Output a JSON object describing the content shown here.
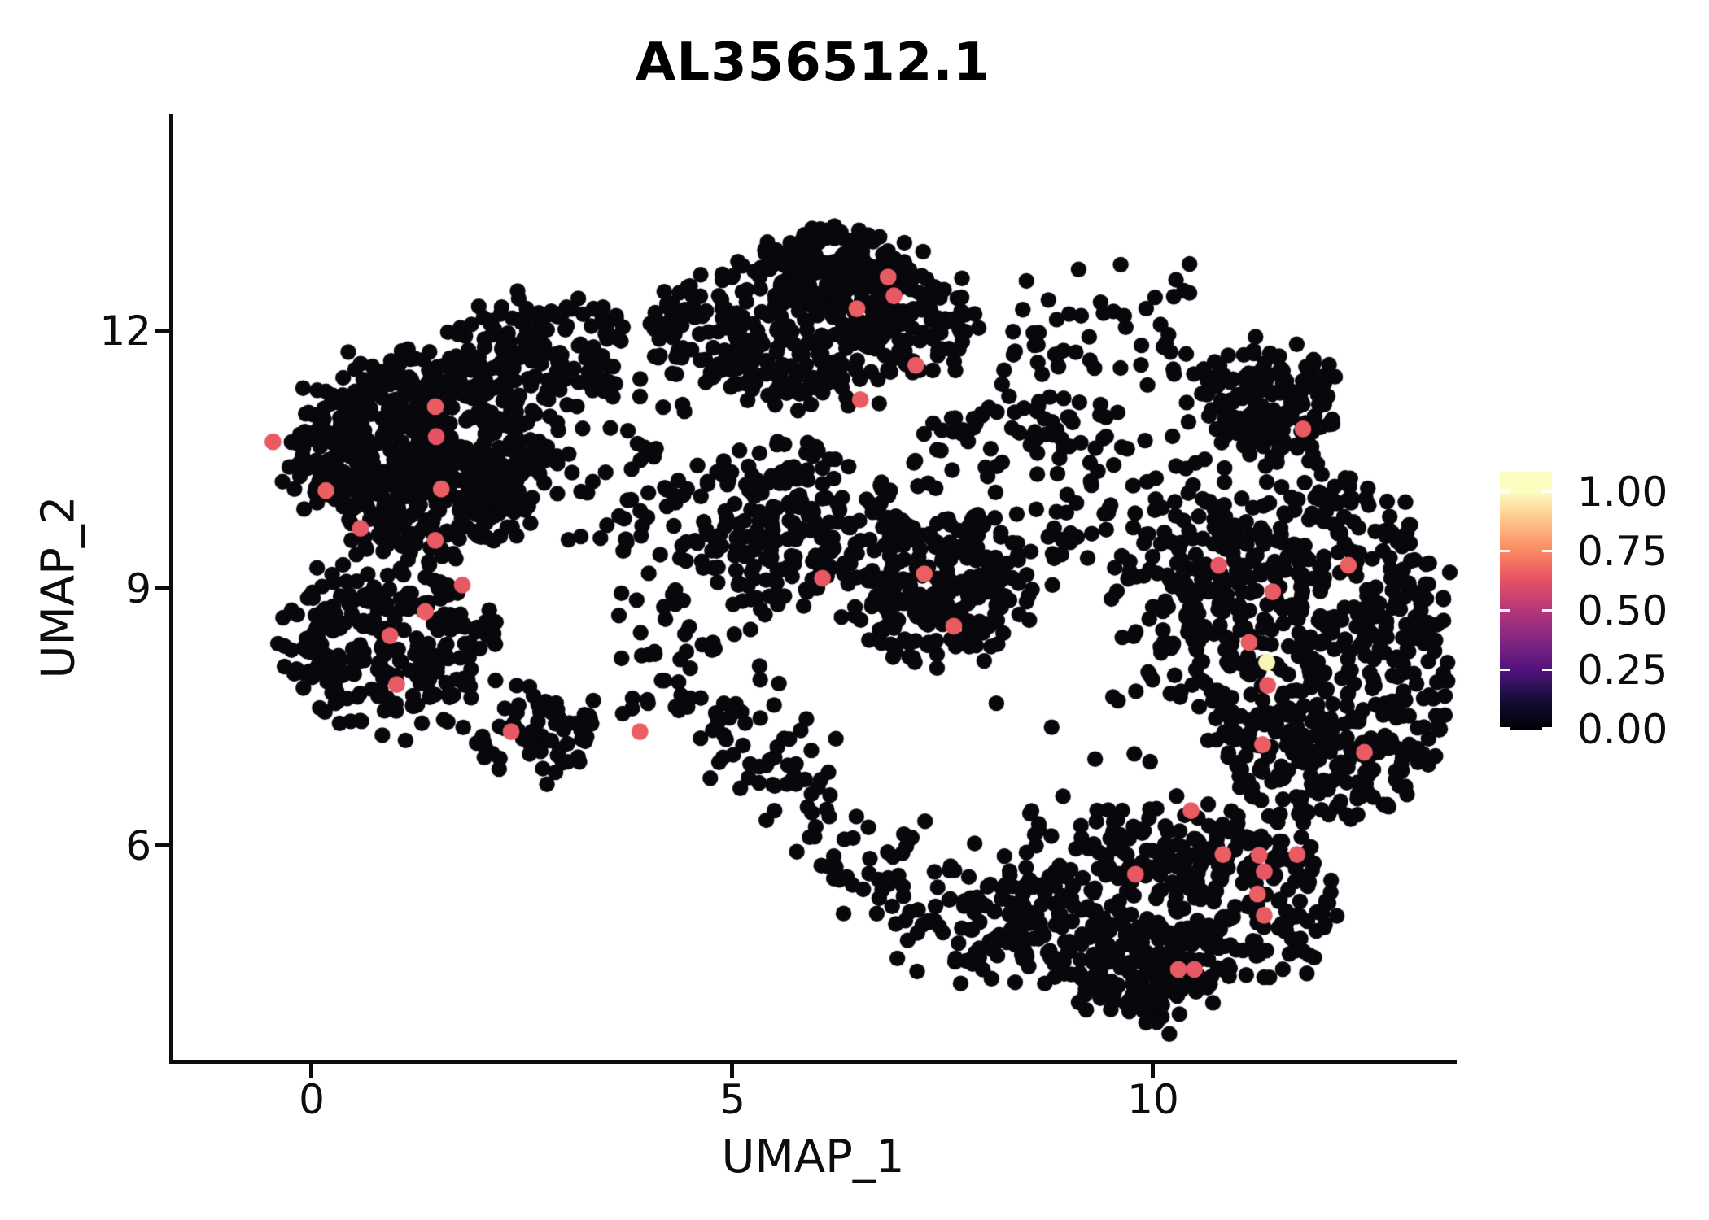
{
  "title": "AL356512.1",
  "chart_data": {
    "type": "scatter",
    "title": "AL356512.1",
    "subtitle": "",
    "xlabel": "UMAP_1",
    "ylabel": "UMAP_2",
    "xlim": [
      -1.673,
      13.588
    ],
    "ylim": [
      3.488,
      14.531
    ],
    "grid": false,
    "legend_position": "right",
    "x_ticks": [
      {
        "value": 0,
        "label": "0"
      },
      {
        "value": 5,
        "label": "5"
      },
      {
        "value": 10,
        "label": "10"
      }
    ],
    "y_ticks": [
      {
        "value": 12,
        "label": "12"
      },
      {
        "value": 9,
        "label": "9"
      },
      {
        "value": 6,
        "label": "6"
      }
    ],
    "point_style": {
      "radius_px": 9.7,
      "highlight_radius_px": 10.4,
      "base_color": "#07070c"
    },
    "colormap": {
      "name": "magma",
      "stops": [
        [
          0.0,
          "#000004"
        ],
        [
          0.125,
          "#140e36"
        ],
        [
          0.25,
          "#51127c"
        ],
        [
          0.375,
          "#822681"
        ],
        [
          0.5,
          "#b5367a"
        ],
        [
          0.625,
          "#e55064"
        ],
        [
          0.75,
          "#fb8761"
        ],
        [
          0.875,
          "#fec287"
        ],
        [
          1.0,
          "#fcfdbf"
        ]
      ]
    },
    "legend": {
      "vmax": 1.085,
      "ticks": [
        {
          "value": 1.0,
          "label": "1.00"
        },
        {
          "value": 0.75,
          "label": "0.75"
        },
        {
          "value": 0.5,
          "label": "0.50"
        },
        {
          "value": 0.25,
          "label": "0.25"
        },
        {
          "value": 0.0,
          "label": "0.00"
        }
      ]
    },
    "seed": 1337,
    "background_clusters": [
      {
        "type": "blob",
        "cx": 1.32,
        "cy": 10.55,
        "rx": 1.55,
        "ry": 1.14,
        "n": 650
      },
      {
        "type": "blob",
        "cx": 2.78,
        "cy": 11.83,
        "rx": 1.06,
        "ry": 0.52,
        "n": 130
      },
      {
        "type": "blob",
        "cx": 0.94,
        "cy": 8.37,
        "rx": 1.26,
        "ry": 0.9,
        "n": 260
      },
      {
        "type": "blob",
        "cx": 2.78,
        "cy": 7.33,
        "rx": 0.77,
        "ry": 0.43,
        "n": 70
      },
      {
        "type": "blob",
        "cx": 5.97,
        "cy": 12.02,
        "rx": 1.93,
        "ry": 0.81,
        "n": 380
      },
      {
        "type": "blob",
        "cx": 6.26,
        "cy": 12.73,
        "rx": 0.87,
        "ry": 0.43,
        "n": 140
      },
      {
        "type": "blob",
        "cx": 7.42,
        "cy": 9.03,
        "rx": 1.06,
        "ry": 0.81,
        "n": 220
      },
      {
        "type": "blob",
        "cx": 5.58,
        "cy": 9.79,
        "rx": 1.16,
        "ry": 0.85,
        "n": 200
      },
      {
        "type": "blob",
        "cx": 8.38,
        "cy": 10.17,
        "rx": 1.55,
        "ry": 1.14,
        "n": 110
      },
      {
        "type": "blob",
        "cx": 11.38,
        "cy": 11.12,
        "rx": 0.82,
        "ry": 0.62,
        "n": 170
      },
      {
        "type": "blob",
        "cx": 11.96,
        "cy": 8.27,
        "rx": 1.6,
        "ry": 1.99,
        "n": 620
      },
      {
        "type": "blob",
        "cx": 10.32,
        "cy": 9.22,
        "rx": 0.87,
        "ry": 1.33,
        "n": 120
      },
      {
        "type": "line",
        "x1": 4.81,
        "y1": 7.42,
        "x2": 8.29,
        "y2": 4.67,
        "jitter": 0.35,
        "n": 160
      },
      {
        "type": "blob",
        "cx": 10.13,
        "cy": 5.34,
        "rx": 2.22,
        "ry": 1.04,
        "n": 430
      },
      {
        "type": "blob",
        "cx": 9.93,
        "cy": 4.48,
        "rx": 0.87,
        "ry": 0.47,
        "n": 90
      },
      {
        "type": "box",
        "x0": 8.0,
        "x1": 10.3,
        "y0": 5.9,
        "y1": 7.9,
        "n": 16
      },
      {
        "type": "box",
        "x0": 8.2,
        "x1": 10.5,
        "y0": 10.6,
        "y1": 12.8,
        "n": 70
      },
      {
        "type": "box",
        "x0": 2.9,
        "x1": 4.5,
        "y0": 9.3,
        "y1": 11.6,
        "n": 55
      },
      {
        "type": "box",
        "x0": 3.6,
        "x1": 5.5,
        "y0": 7.5,
        "y1": 9.2,
        "n": 45
      }
    ],
    "highlighted_points": [
      {
        "x": -0.46,
        "y": 10.71,
        "value": 0.65
      },
      {
        "x": 0.17,
        "y": 10.14,
        "value": 0.66
      },
      {
        "x": 0.58,
        "y": 9.7,
        "value": 0.64
      },
      {
        "x": 1.47,
        "y": 11.12,
        "value": 0.65
      },
      {
        "x": 1.48,
        "y": 10.77,
        "value": 0.63
      },
      {
        "x": 1.54,
        "y": 10.16,
        "value": 0.66
      },
      {
        "x": 1.47,
        "y": 9.56,
        "value": 0.65
      },
      {
        "x": 1.79,
        "y": 9.04,
        "value": 0.64
      },
      {
        "x": 1.35,
        "y": 8.73,
        "value": 0.66
      },
      {
        "x": 0.93,
        "y": 8.45,
        "value": 0.65
      },
      {
        "x": 1.01,
        "y": 7.88,
        "value": 0.65
      },
      {
        "x": 2.37,
        "y": 7.33,
        "value": 0.64
      },
      {
        "x": 3.9,
        "y": 7.33,
        "value": 0.66
      },
      {
        "x": 6.85,
        "y": 12.63,
        "value": 0.65
      },
      {
        "x": 6.92,
        "y": 12.41,
        "value": 0.64
      },
      {
        "x": 6.48,
        "y": 12.26,
        "value": 0.66
      },
      {
        "x": 7.18,
        "y": 11.6,
        "value": 0.65
      },
      {
        "x": 6.52,
        "y": 11.2,
        "value": 0.65
      },
      {
        "x": 6.07,
        "y": 9.12,
        "value": 0.64
      },
      {
        "x": 7.28,
        "y": 9.17,
        "value": 0.66
      },
      {
        "x": 7.63,
        "y": 8.56,
        "value": 0.65
      },
      {
        "x": 11.78,
        "y": 10.86,
        "value": 0.65
      },
      {
        "x": 10.78,
        "y": 9.27,
        "value": 0.64
      },
      {
        "x": 12.32,
        "y": 9.27,
        "value": 0.66
      },
      {
        "x": 11.42,
        "y": 8.96,
        "value": 0.65
      },
      {
        "x": 11.14,
        "y": 8.37,
        "value": 0.65
      },
      {
        "x": 11.36,
        "y": 7.87,
        "value": 0.64
      },
      {
        "x": 11.3,
        "y": 7.18,
        "value": 0.66
      },
      {
        "x": 12.51,
        "y": 7.09,
        "value": 0.65
      },
      {
        "x": 10.45,
        "y": 6.41,
        "value": 0.65
      },
      {
        "x": 9.79,
        "y": 5.67,
        "value": 0.64
      },
      {
        "x": 10.83,
        "y": 5.9,
        "value": 0.66
      },
      {
        "x": 11.26,
        "y": 5.89,
        "value": 0.65
      },
      {
        "x": 11.71,
        "y": 5.9,
        "value": 0.65
      },
      {
        "x": 11.32,
        "y": 5.7,
        "value": 0.64
      },
      {
        "x": 11.24,
        "y": 5.44,
        "value": 0.66
      },
      {
        "x": 11.32,
        "y": 5.19,
        "value": 0.65
      },
      {
        "x": 10.3,
        "y": 4.56,
        "value": 0.65
      },
      {
        "x": 10.49,
        "y": 4.56,
        "value": 0.64
      },
      {
        "x": 11.35,
        "y": 8.14,
        "value": 0.98
      }
    ]
  }
}
